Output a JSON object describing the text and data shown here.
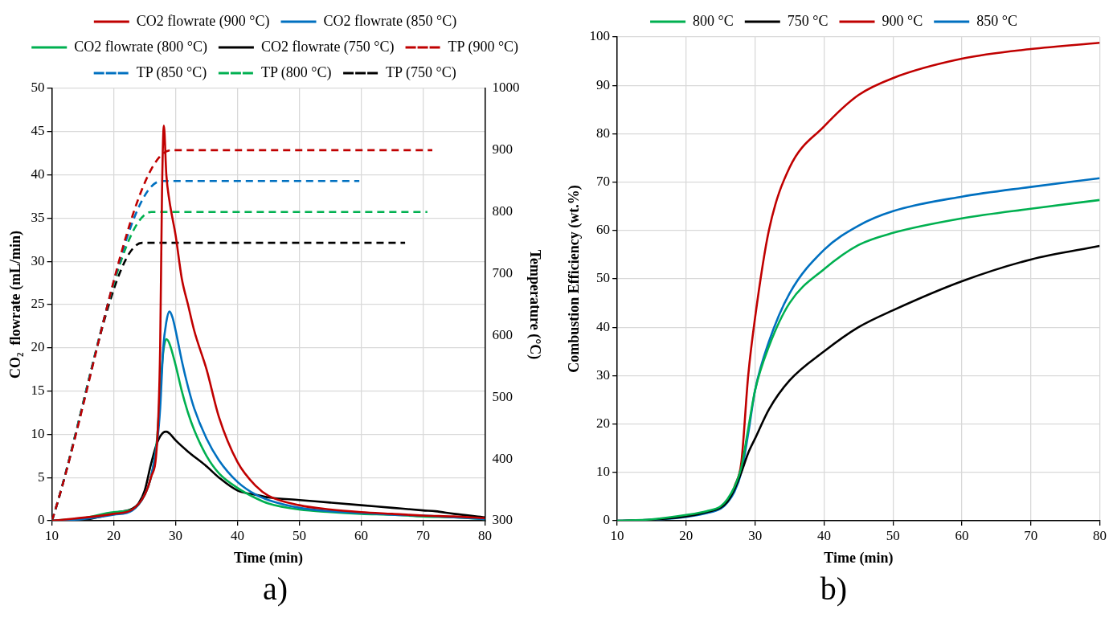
{
  "chart_data": [
    {
      "type": "line",
      "xlabel": "Time (min)",
      "ylabel": "CO₂  flowrate (mL/min)",
      "y2label": "Temperature (°C)",
      "annotations": [
        "a)"
      ],
      "xlim": [
        10,
        80
      ],
      "xticks": [
        10,
        20,
        30,
        40,
        50,
        60,
        70,
        80
      ],
      "ylim": [
        0,
        50
      ],
      "yticks": [
        0,
        5,
        10,
        15,
        20,
        25,
        30,
        35,
        40,
        45,
        50
      ],
      "y2lim": [
        300,
        1000
      ],
      "y2ticks": [
        300,
        400,
        500,
        600,
        700,
        800,
        900,
        1000
      ],
      "grid": true,
      "legend": "top",
      "marker": "none",
      "series": [
        {
          "name": "CO2 flowrate (900 °C)",
          "color": "#c00000",
          "x": [
            10,
            20,
            23,
            25,
            26,
            27,
            27.5,
            27.8,
            28.1,
            28.5,
            29,
            30,
            31,
            32,
            33,
            35,
            37,
            40,
            43,
            45,
            50,
            55,
            60,
            65,
            70,
            75,
            80
          ],
          "values": [
            0,
            0.8,
            1.3,
            3,
            5,
            9,
            20,
            38,
            45.7,
            40,
            37,
            33,
            28,
            25,
            22,
            17.5,
            12,
            6.8,
            4,
            2.9,
            1.8,
            1.3,
            1.0,
            0.8,
            0.6,
            0.5,
            0.3
          ]
        },
        {
          "name": "CO2 flowrate (850 °C)",
          "color": "#0070c0",
          "x": [
            10,
            15,
            20,
            23,
            25,
            26,
            27,
            27.5,
            28,
            28.5,
            29,
            29.5,
            30,
            31,
            32,
            33,
            35,
            37,
            40,
            43,
            45,
            50,
            55,
            60,
            65,
            70,
            75,
            80
          ],
          "values": [
            0,
            0.2,
            0.7,
            1.2,
            3,
            5,
            9,
            13,
            20,
            23,
            24.2,
            23.5,
            22,
            18.5,
            15.5,
            13,
            9.5,
            7,
            4.5,
            3,
            2.4,
            1.5,
            1.1,
            0.9,
            0.7,
            0.6,
            0.4,
            0.2
          ]
        },
        {
          "name": "CO2 flowrate (800 °C)",
          "color": "#00b050",
          "x": [
            10,
            15,
            20,
            23,
            25,
            26,
            27,
            27.5,
            28,
            28.5,
            29,
            30,
            31,
            32,
            33,
            35,
            37,
            40,
            43,
            45,
            50,
            55,
            60,
            65,
            70,
            75,
            80
          ],
          "values": [
            0,
            0.3,
            1,
            1.3,
            3,
            5,
            9.5,
            15,
            19.5,
            21,
            20.5,
            18,
            15,
            12.5,
            10.5,
            7.5,
            5.5,
            3.8,
            2.6,
            2,
            1.3,
            1,
            0.8,
            0.7,
            0.5,
            0.4,
            0.2
          ]
        },
        {
          "name": "CO2 flowrate (750 °C)",
          "color": "#000000",
          "x": [
            10,
            15,
            18,
            20,
            23,
            24,
            25,
            26,
            27,
            28,
            28.5,
            29,
            30,
            32,
            35,
            37,
            40,
            43,
            45,
            50,
            55,
            60,
            65,
            70,
            72,
            75,
            80
          ],
          "values": [
            0,
            0.1,
            0.5,
            0.9,
            1.4,
            2,
            3.5,
            6.5,
            9,
            10.2,
            10.3,
            10.1,
            9.3,
            8,
            6.3,
            5,
            3.5,
            3,
            2.7,
            2.4,
            2.1,
            1.8,
            1.5,
            1.2,
            1.1,
            0.8,
            0.4
          ]
        },
        {
          "name": "TP (900 °C)",
          "color": "#c00000",
          "axis": "y2",
          "line_style": "dashed",
          "x": [
            10,
            29.3,
            71.5
          ],
          "values": [
            300,
            900,
            900
          ]
        },
        {
          "name": "TP (850 °C)",
          "color": "#0070c0",
          "axis": "y2",
          "line_style": "dashed",
          "x": [
            10,
            27.7,
            59.7
          ],
          "values": [
            300,
            850,
            850
          ]
        },
        {
          "name": "TP (800 °C)",
          "color": "#00b050",
          "axis": "y2",
          "line_style": "dashed",
          "x": [
            10,
            26.1,
            70.7
          ],
          "values": [
            300,
            800,
            800
          ]
        },
        {
          "name": "TP (750 °C)",
          "color": "#000000",
          "axis": "y2",
          "line_style": "dashed",
          "x": [
            10,
            24.6,
            67.1
          ],
          "values": [
            300,
            750,
            750
          ]
        }
      ]
    },
    {
      "type": "line",
      "xlabel": "Time (min)",
      "ylabel": "Combustion Efficiency (wt.%)",
      "annotations": [
        "b)"
      ],
      "xlim": [
        10,
        80
      ],
      "xticks": [
        10,
        20,
        30,
        40,
        50,
        60,
        70,
        80
      ],
      "ylim": [
        0,
        100
      ],
      "yticks": [
        0,
        10,
        20,
        30,
        40,
        50,
        60,
        70,
        80,
        90,
        100
      ],
      "grid": true,
      "legend": "top",
      "marker": "none",
      "x": [
        10,
        15,
        20,
        23,
        25,
        26,
        27,
        28,
        29,
        30,
        32,
        35,
        40,
        45,
        50,
        60,
        70,
        80
      ],
      "series": [
        {
          "name": "800 °C",
          "color": "#00b050",
          "values": [
            0,
            0.3,
            1.2,
            2,
            3,
            4.5,
            7,
            11,
            19,
            27,
            36,
            45,
            52,
            57,
            59.5,
            62.5,
            64.5,
            66.3
          ]
        },
        {
          "name": "750 °C",
          "color": "#000000",
          "values": [
            0,
            0.2,
            0.9,
            1.8,
            2.7,
            4,
            6.5,
            10,
            14,
            17,
            23,
            29,
            35,
            40,
            43.5,
            49.5,
            54,
            56.8
          ]
        },
        {
          "name": "900 °C",
          "color": "#c00000",
          "values": [
            null,
            null,
            null,
            null,
            null,
            null,
            7,
            12,
            30,
            42,
            60,
            73,
            81.5,
            88,
            91.5,
            95.5,
            97.5,
            98.8
          ]
        },
        {
          "name": "850 °C",
          "color": "#0070c0",
          "values": [
            0,
            0.2,
            0.8,
            1.6,
            2.5,
            3.8,
            6,
            10,
            18,
            27,
            37,
            47,
            56,
            61,
            64,
            67,
            69,
            70.8
          ]
        }
      ]
    }
  ]
}
